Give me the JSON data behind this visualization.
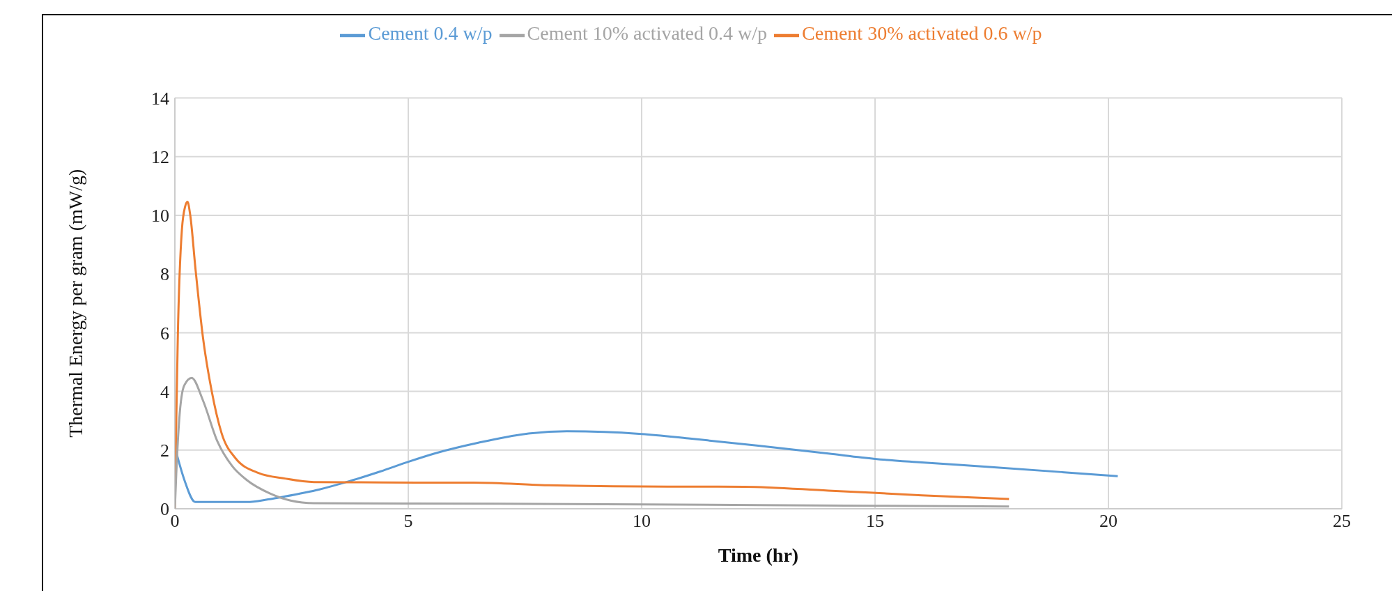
{
  "chart_data": {
    "type": "line",
    "xlabel": "Time (hr)",
    "ylabel": "Thermal Energy per gram (mW/g)",
    "xlim": [
      0,
      25
    ],
    "xticks": [
      0,
      5,
      10,
      15,
      20,
      25
    ],
    "ylim": [
      0,
      14
    ],
    "yticks": [
      0,
      2,
      4,
      6,
      8,
      10,
      12,
      14
    ],
    "grid": true,
    "legend": "top",
    "marker": "none",
    "line_style": "solid",
    "series": [
      {
        "name": "Cement 0.4 w/p",
        "color": "#5b9bd5",
        "x": [
          0.03,
          0.2,
          0.44,
          1.0,
          1.54,
          2.0,
          2.36,
          3.1,
          3.74,
          4.4,
          5.0,
          5.6,
          6.5,
          7.5,
          8.4,
          9.2,
          10,
          11,
          12.5,
          14,
          15,
          16,
          17.5,
          19,
          20.2
        ],
        "values": [
          1.92,
          1.0,
          0.23,
          0.23,
          0.23,
          0.32,
          0.42,
          0.66,
          0.94,
          1.27,
          1.6,
          1.9,
          2.25,
          2.55,
          2.64,
          2.62,
          2.55,
          2.4,
          2.15,
          1.88,
          1.7,
          1.58,
          1.42,
          1.25,
          1.11
        ]
      },
      {
        "name": "Cement 30% activated 0.6 w/p",
        "color": "#ed7d31",
        "x": [
          0,
          0.03,
          0.063,
          0.15,
          0.22,
          0.27,
          0.33,
          0.44,
          0.6,
          0.79,
          1.0,
          1.29,
          1.79,
          2.36,
          2.98,
          4,
          5.18,
          6.4,
          8,
          10,
          12.2,
          14,
          16,
          17.87
        ],
        "values": [
          0,
          3.0,
          5.86,
          9.5,
          10.3,
          10.46,
          10.0,
          8.2,
          5.86,
          4.0,
          2.58,
          1.74,
          1.22,
          1.03,
          0.91,
          0.9,
          0.89,
          0.89,
          0.8,
          0.76,
          0.75,
          0.62,
          0.46,
          0.33
        ]
      },
      {
        "name": "Cement 10% activated 0.4 w/p",
        "color": "#a5a5a5",
        "x": [
          0,
          0.03,
          0.094,
          0.2,
          0.36,
          0.6,
          0.91,
          1.23,
          1.54,
          2.04,
          2.48,
          2.98,
          5,
          10,
          15,
          17.87
        ],
        "values": [
          0,
          1.2,
          3.05,
          4.2,
          4.46,
          3.7,
          2.3,
          1.45,
          0.98,
          0.52,
          0.28,
          0.19,
          0.18,
          0.15,
          0.1,
          0.08
        ]
      }
    ]
  }
}
